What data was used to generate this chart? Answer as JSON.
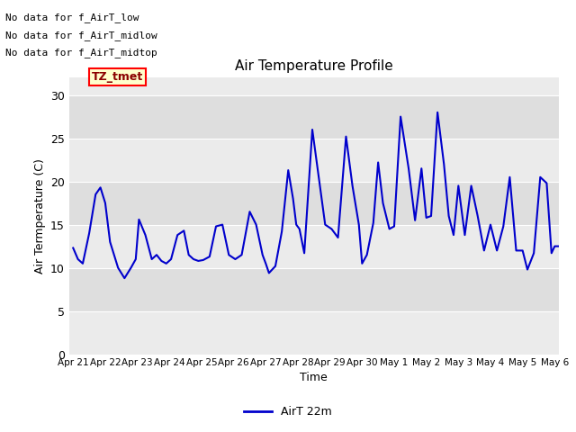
{
  "title": "Air Temperature Profile",
  "xlabel": "Time",
  "ylabel": "Air Termperature (C)",
  "ylim": [
    0,
    32
  ],
  "yticks": [
    0,
    5,
    10,
    15,
    20,
    25,
    30
  ],
  "plot_bg_light": "#ebebeb",
  "plot_bg_dark": "#dedede",
  "fig_bg": "#ffffff",
  "line_color": "#0000cc",
  "line_width": 1.5,
  "legend_label": "AirT 22m",
  "legend_color": "#0000cc",
  "no_data_texts": [
    "No data for f_AirT_low",
    "No data for f_AirT_midlow",
    "No data for f_AirT_midtop"
  ],
  "tz_tmet_label": "TZ_tmet",
  "x_tick_labels": [
    "Apr 21",
    "Apr 22",
    "Apr 23",
    "Apr 24",
    "Apr 25",
    "Apr 26",
    "Apr 27",
    "Apr 28",
    "Apr 29",
    "Apr 30",
    "May 1",
    "May 2",
    "May 3",
    "May 4",
    "May 5",
    "May 6"
  ],
  "key_t": [
    0.0,
    0.15,
    0.3,
    0.5,
    0.7,
    0.85,
    1.0,
    1.15,
    1.4,
    1.6,
    1.8,
    1.95,
    2.05,
    2.25,
    2.45,
    2.6,
    2.75,
    2.9,
    3.05,
    3.25,
    3.45,
    3.6,
    3.75,
    3.9,
    4.05,
    4.25,
    4.45,
    4.65,
    4.85,
    5.05,
    5.25,
    5.5,
    5.7,
    5.9,
    6.0,
    6.1,
    6.3,
    6.5,
    6.7,
    6.85,
    6.95,
    7.05,
    7.2,
    7.45,
    7.65,
    7.85,
    8.05,
    8.25,
    8.5,
    8.7,
    8.9,
    9.0,
    9.15,
    9.35,
    9.5,
    9.65,
    9.85,
    10.0,
    10.2,
    10.45,
    10.65,
    10.85,
    11.0,
    11.15,
    11.35,
    11.55,
    11.7,
    11.85,
    12.0,
    12.2,
    12.4,
    12.6,
    12.8,
    13.0,
    13.2,
    13.4,
    13.6,
    13.8,
    14.0,
    14.15,
    14.35,
    14.55,
    14.75,
    14.9,
    15.0,
    15.3
  ],
  "key_v": [
    12.3,
    11.0,
    10.5,
    14.0,
    18.5,
    19.3,
    17.5,
    13.0,
    10.0,
    8.8,
    10.0,
    11.0,
    15.6,
    13.8,
    11.0,
    11.5,
    10.8,
    10.5,
    11.0,
    13.8,
    14.3,
    11.5,
    11.0,
    10.8,
    10.9,
    11.3,
    14.8,
    15.0,
    11.5,
    11.0,
    11.5,
    16.5,
    15.0,
    11.5,
    10.5,
    9.4,
    10.2,
    14.2,
    21.3,
    18.0,
    15.0,
    14.5,
    11.7,
    26.0,
    20.5,
    15.0,
    14.5,
    13.5,
    25.2,
    19.5,
    15.0,
    10.5,
    11.5,
    15.2,
    22.2,
    17.5,
    14.5,
    14.8,
    27.5,
    21.5,
    15.5,
    21.5,
    15.8,
    16.0,
    28.0,
    22.0,
    16.0,
    13.8,
    19.5,
    13.8,
    19.5,
    16.0,
    12.0,
    15.0,
    12.0,
    14.8,
    20.5,
    12.0,
    12.0,
    9.8,
    11.7,
    20.5,
    19.8,
    11.7,
    12.5,
    12.5
  ]
}
